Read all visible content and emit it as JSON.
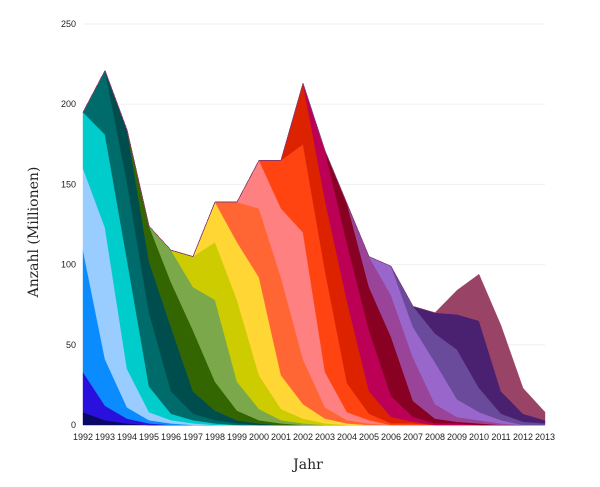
{
  "chart_data": {
    "type": "area",
    "stacked": true,
    "xlabel": "Jahr",
    "ylabel": "Anzahl (Millionen)",
    "ylim": [
      0,
      250
    ],
    "yticks": [
      0,
      50,
      100,
      150,
      200,
      250
    ],
    "grid": true,
    "x": [
      1992,
      1993,
      1994,
      1995,
      1996,
      1997,
      1998,
      1999,
      2000,
      2001,
      2002,
      2003,
      2004,
      2005,
      2006,
      2007,
      2008,
      2009,
      2010,
      2011,
      2012,
      2013
    ],
    "series": [
      {
        "color": "#0a0a66",
        "values": [
          8,
          3,
          1,
          0,
          0,
          0,
          0,
          0,
          0,
          0,
          0,
          0,
          0,
          0,
          0,
          0,
          0,
          0,
          0,
          0,
          0,
          0
        ]
      },
      {
        "color": "#2a10dd",
        "values": [
          25,
          9,
          3,
          1,
          0,
          0,
          0,
          0,
          0,
          0,
          0,
          0,
          0,
          0,
          0,
          0,
          0,
          0,
          0,
          0,
          0,
          0
        ]
      },
      {
        "color": "#0a8cff",
        "values": [
          76,
          29,
          7,
          2,
          1,
          0,
          0,
          0,
          0,
          0,
          0,
          0,
          0,
          0,
          0,
          0,
          0,
          0,
          0,
          0,
          0,
          0
        ]
      },
      {
        "color": "#99ccff",
        "values": [
          51,
          82,
          24,
          5,
          2,
          1,
          0,
          0,
          0,
          0,
          0,
          0,
          0,
          0,
          0,
          0,
          0,
          0,
          0,
          0,
          0,
          0
        ]
      },
      {
        "color": "#00cccc",
        "values": [
          35,
          58,
          68,
          16,
          4,
          2,
          1,
          0,
          0,
          0,
          0,
          0,
          0,
          0,
          0,
          0,
          0,
          0,
          0,
          0,
          0,
          0
        ]
      },
      {
        "color": "#006b6b",
        "values": [
          0,
          40,
          48,
          46,
          14,
          4,
          2,
          1,
          0,
          0,
          0,
          0,
          0,
          0,
          0,
          0,
          0,
          0,
          0,
          0,
          0,
          0
        ]
      },
      {
        "color": "#004d4d",
        "values": [
          0,
          0,
          33,
          32,
          40,
          14,
          6,
          2,
          1,
          0,
          0,
          0,
          0,
          0,
          0,
          0,
          0,
          0,
          0,
          0,
          0,
          0
        ]
      },
      {
        "color": "#336600",
        "values": [
          0,
          0,
          0,
          22,
          28,
          38,
          18,
          6,
          2,
          1,
          0,
          0,
          0,
          0,
          0,
          0,
          0,
          0,
          0,
          0,
          0,
          0
        ]
      },
      {
        "color": "#7aa84a",
        "values": [
          0,
          0,
          0,
          0,
          20,
          27,
          51,
          18,
          7,
          2,
          1,
          0,
          0,
          0,
          0,
          0,
          0,
          0,
          0,
          0,
          0,
          0
        ]
      },
      {
        "color": "#cccc00",
        "values": [
          0,
          0,
          0,
          0,
          0,
          19,
          36,
          51,
          21,
          7,
          3,
          1,
          0,
          0,
          0,
          0,
          0,
          0,
          0,
          0,
          0,
          0
        ]
      },
      {
        "color": "#ffd633",
        "values": [
          0,
          0,
          0,
          0,
          0,
          0,
          25,
          36,
          61,
          21,
          9,
          3,
          1,
          0,
          0,
          0,
          0,
          0,
          0,
          0,
          0,
          0
        ]
      },
      {
        "color": "#ff6633",
        "values": [
          0,
          0,
          0,
          0,
          0,
          0,
          0,
          25,
          43,
          61,
          28,
          7,
          2,
          1,
          0,
          0,
          0,
          0,
          0,
          0,
          0,
          0
        ]
      },
      {
        "color": "#ff8080",
        "values": [
          0,
          0,
          0,
          0,
          0,
          0,
          0,
          0,
          30,
          43,
          79,
          22,
          5,
          2,
          0,
          0,
          0,
          0,
          0,
          0,
          0,
          0
        ]
      },
      {
        "color": "#ff4411",
        "values": [
          0,
          0,
          0,
          0,
          0,
          0,
          0,
          0,
          0,
          30,
          55,
          63,
          18,
          4,
          1,
          1,
          0,
          0,
          0,
          0,
          0,
          0
        ]
      },
      {
        "color": "#dd2200",
        "values": [
          0,
          0,
          0,
          0,
          0,
          0,
          0,
          0,
          0,
          0,
          38,
          44,
          51,
          14,
          4,
          1,
          0,
          0,
          0,
          0,
          0,
          0
        ]
      },
      {
        "color": "#bb0055",
        "values": [
          0,
          0,
          0,
          0,
          0,
          0,
          0,
          0,
          0,
          0,
          0,
          31,
          36,
          38,
          13,
          3,
          1,
          1,
          0,
          0,
          0,
          0
        ]
      },
      {
        "color": "#880022",
        "values": [
          0,
          0,
          0,
          0,
          0,
          0,
          0,
          0,
          0,
          0,
          0,
          0,
          25,
          27,
          37,
          10,
          3,
          1,
          1,
          0,
          0,
          0
        ]
      },
      {
        "color": "#994499",
        "values": [
          0,
          0,
          0,
          0,
          0,
          0,
          0,
          0,
          0,
          0,
          0,
          0,
          0,
          19,
          26,
          27,
          9,
          3,
          2,
          1,
          0,
          0
        ]
      },
      {
        "color": "#9966cc",
        "values": [
          0,
          0,
          0,
          0,
          0,
          0,
          0,
          0,
          0,
          0,
          0,
          0,
          0,
          0,
          18,
          19,
          26,
          11,
          5,
          2,
          0,
          0
        ]
      },
      {
        "color": "#6a4a9a",
        "values": [
          0,
          0,
          0,
          0,
          0,
          0,
          0,
          0,
          0,
          0,
          0,
          0,
          0,
          0,
          0,
          13,
          18,
          31,
          15,
          4,
          2,
          1
        ]
      },
      {
        "color": "#4a2070",
        "values": [
          0,
          0,
          0,
          0,
          0,
          0,
          0,
          0,
          0,
          0,
          0,
          0,
          0,
          0,
          0,
          0,
          13,
          22,
          42,
          14,
          5,
          2
        ]
      },
      {
        "color": "#994466",
        "values": [
          0,
          0,
          0,
          0,
          0,
          0,
          0,
          0,
          0,
          0,
          0,
          0,
          0,
          0,
          0,
          0,
          0,
          15,
          29,
          41,
          16,
          5
        ]
      }
    ]
  }
}
